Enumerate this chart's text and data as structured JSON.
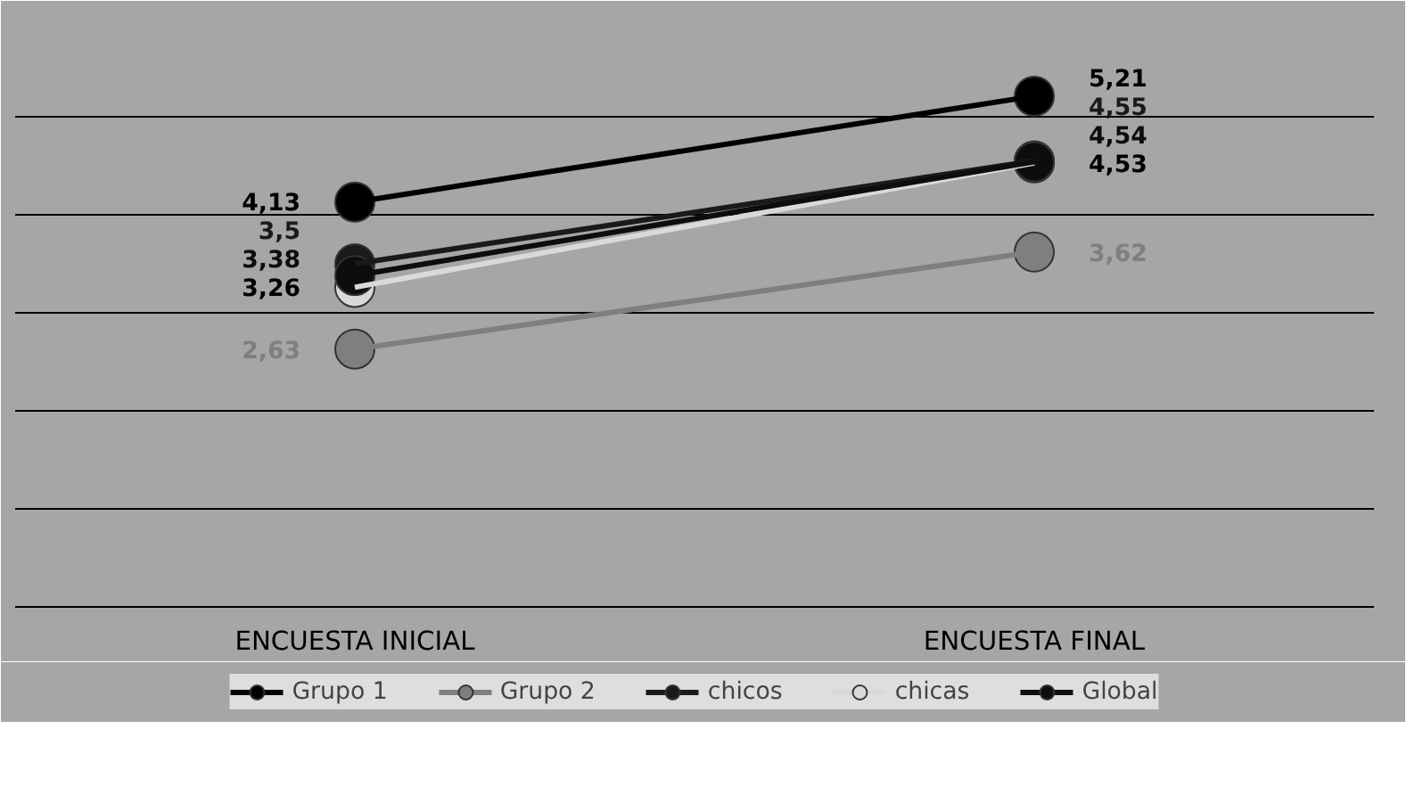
{
  "chart_data": {
    "type": "line",
    "categories": [
      "ENCUESTA INICIAL",
      "ENCUESTA FINAL"
    ],
    "ylim": [
      0,
      6
    ],
    "yticks": [
      0,
      1,
      2,
      3,
      4,
      5,
      6
    ],
    "tick_labels": "x",
    "grid": "y",
    "legend": "bottom",
    "marker": "circle",
    "line_style": "solid",
    "series": [
      {
        "name": "Grupo 1",
        "color": "#000000",
        "values": [
          4.13,
          5.21
        ],
        "value_labels": [
          "4,13",
          "5,21"
        ]
      },
      {
        "name": "Grupo 2",
        "color": "#7f7f7f",
        "values": [
          2.63,
          3.62
        ],
        "value_labels": [
          "2,63",
          "3,62"
        ]
      },
      {
        "name": "chicos",
        "color": "#1a1a1a",
        "values": [
          3.5,
          4.55
        ],
        "value_labels": [
          "3,5",
          "4,55"
        ]
      },
      {
        "name": "chicas",
        "color": "#d9d9d9",
        "values": [
          3.26,
          4.53
        ],
        "value_labels": [
          "3,26",
          "4,53"
        ]
      },
      {
        "name": "Global",
        "color": "#0d0d0d",
        "values": [
          3.38,
          4.54
        ],
        "value_labels": [
          "3,38",
          "4,54"
        ]
      }
    ]
  }
}
